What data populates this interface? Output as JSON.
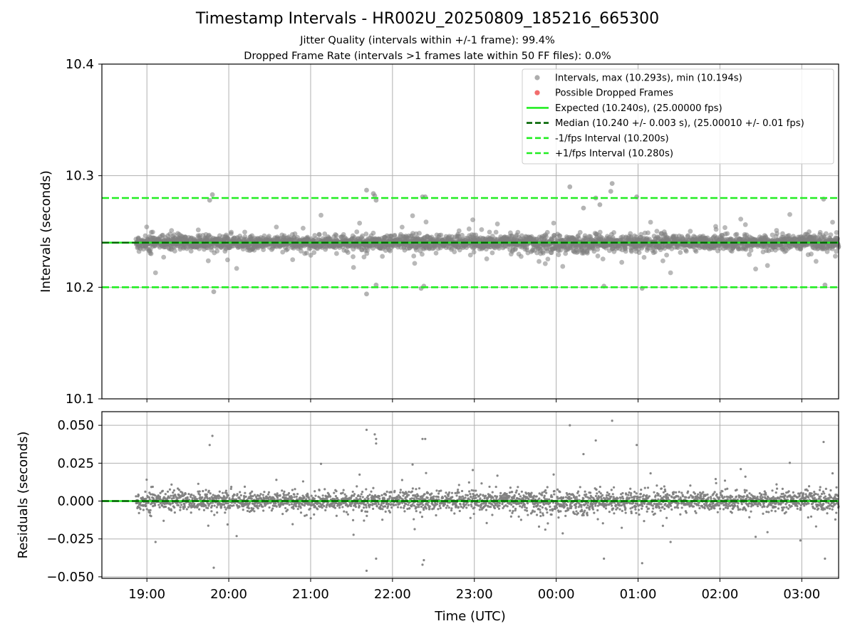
{
  "title": "Timestamp Intervals - HR002U_20250809_185216_665300",
  "subtitle_lines": [
    "Jitter Quality (intervals within +/-1 frame): 99.4%",
    "Dropped Frame Rate (intervals >1 frames late within 50 FF files): 0.0%"
  ],
  "chart_data": [
    {
      "type": "scatter",
      "name": "intervals",
      "ylabel": "Intervals (seconds)",
      "ylim": [
        10.1,
        10.4
      ],
      "y_ticks": [
        "10.1",
        "10.2",
        "10.3",
        "10.4"
      ],
      "y_tick_values": [
        10.1,
        10.2,
        10.3,
        10.4
      ],
      "x_ticks": [
        "19:00",
        "20:00",
        "21:00",
        "22:00",
        "23:00",
        "00:00",
        "01:00",
        "02:00",
        "03:00"
      ],
      "xlim": [
        "18:27",
        "03:27"
      ],
      "grid": true,
      "legend_position": "top-right",
      "legend": [
        {
          "label": "Intervals, max (10.293s), min (10.194s)",
          "kind": "dot",
          "color": "#999999"
        },
        {
          "label": "Possible Dropped Frames",
          "kind": "dot",
          "color": "#f26d6d"
        },
        {
          "label": "Expected (10.240s), (25.00000 fps)",
          "kind": "solid",
          "color": "#22ee22"
        },
        {
          "label": "Median (10.240 +/- 0.003 s), (25.00010 +/- 0.01 fps)",
          "kind": "dashed",
          "color": "#006400"
        },
        {
          "label": "-1/fps Interval (10.200s)",
          "kind": "dashed",
          "color": "#22ee22"
        },
        {
          "label": "+1/fps Interval (10.280s)",
          "kind": "dashed",
          "color": "#22ee22"
        }
      ],
      "reference_lines": {
        "expected": 10.24,
        "median": 10.24,
        "lower": 10.2,
        "upper": 10.28
      },
      "series": {
        "start_time": "18:52",
        "end_time": "03:27",
        "mean": 10.24,
        "count": 3024,
        "max": 10.293,
        "min": 10.194,
        "points": [
          {
            "x": "19:48",
            "y": 10.283
          },
          {
            "x": "19:46",
            "y": 10.278
          },
          {
            "x": "19:49",
            "y": 10.196
          },
          {
            "x": "21:41",
            "y": 10.287
          },
          {
            "x": "21:46",
            "y": 10.284
          },
          {
            "x": "21:47",
            "y": 10.282
          },
          {
            "x": "21:48",
            "y": 10.278
          },
          {
            "x": "21:41",
            "y": 10.194
          },
          {
            "x": "21:48",
            "y": 10.202
          },
          {
            "x": "22:22",
            "y": 10.281
          },
          {
            "x": "22:24",
            "y": 10.281
          },
          {
            "x": "22:23",
            "y": 10.201
          },
          {
            "x": "22:21",
            "y": 10.199
          },
          {
            "x": "00:10",
            "y": 10.29
          },
          {
            "x": "00:20",
            "y": 10.271
          },
          {
            "x": "00:29",
            "y": 10.28
          },
          {
            "x": "00:32",
            "y": 10.274
          },
          {
            "x": "00:40",
            "y": 10.286
          },
          {
            "x": "00:41",
            "y": 10.293
          },
          {
            "x": "00:35",
            "y": 10.201
          },
          {
            "x": "00:59",
            "y": 10.281
          },
          {
            "x": "01:03",
            "y": 10.199
          },
          {
            "x": "03:16",
            "y": 10.279
          },
          {
            "x": "03:17",
            "y": 10.202
          }
        ]
      }
    },
    {
      "type": "scatter",
      "name": "residuals",
      "ylabel": "Residuals (seconds)",
      "xlabel": "Time (UTC)",
      "ylim": [
        -0.051,
        0.059
      ],
      "y_ticks": [
        "−0.050",
        "−0.025",
        "0.000",
        "0.025",
        "0.050"
      ],
      "y_tick_values": [
        -0.05,
        -0.025,
        0.0,
        0.025,
        0.05
      ],
      "x_ticks": [
        "19:00",
        "20:00",
        "21:00",
        "22:00",
        "23:00",
        "00:00",
        "01:00",
        "02:00",
        "03:00"
      ],
      "xlim": [
        "18:27",
        "03:27"
      ],
      "grid": true,
      "reference_lines": {
        "expected": 0.0,
        "median": 0.0
      },
      "series": {
        "start_time": "18:52",
        "end_time": "03:27",
        "mean": 0.0,
        "max": 0.053,
        "min": -0.046,
        "points": [
          {
            "x": "19:48",
            "y": 0.043
          },
          {
            "x": "19:46",
            "y": 0.037
          },
          {
            "x": "19:49",
            "y": -0.044
          },
          {
            "x": "21:41",
            "y": 0.047
          },
          {
            "x": "21:47",
            "y": 0.044
          },
          {
            "x": "21:48",
            "y": 0.041
          },
          {
            "x": "21:48",
            "y": 0.038
          },
          {
            "x": "21:41",
            "y": -0.046
          },
          {
            "x": "21:48",
            "y": -0.038
          },
          {
            "x": "22:22",
            "y": 0.041
          },
          {
            "x": "22:24",
            "y": 0.041
          },
          {
            "x": "22:22",
            "y": -0.042
          },
          {
            "x": "22:23",
            "y": -0.039
          },
          {
            "x": "00:10",
            "y": 0.05
          },
          {
            "x": "00:20",
            "y": 0.031
          },
          {
            "x": "00:29",
            "y": 0.04
          },
          {
            "x": "00:41",
            "y": 0.053
          },
          {
            "x": "00:35",
            "y": -0.038
          },
          {
            "x": "00:59",
            "y": 0.037
          },
          {
            "x": "01:03",
            "y": -0.041
          },
          {
            "x": "03:16",
            "y": 0.039
          },
          {
            "x": "03:17",
            "y": -0.038
          },
          {
            "x": "02:59",
            "y": -0.026
          }
        ]
      }
    }
  ]
}
